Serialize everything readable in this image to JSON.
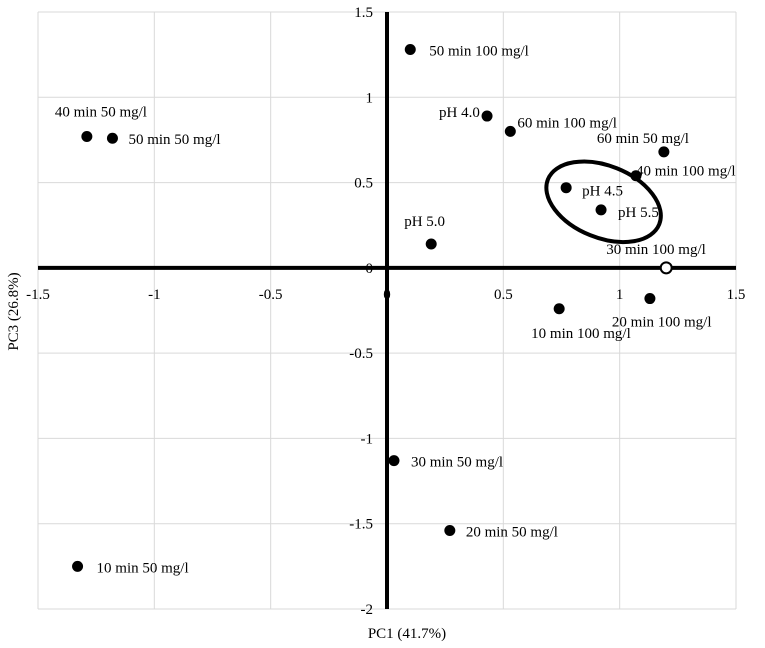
{
  "chart_data": {
    "type": "scatter",
    "xlabel": "PC1 (41.7%)",
    "ylabel": "PC3 (26.8%)",
    "xlim": [
      -1.5,
      1.5
    ],
    "ylim": [
      -2,
      1.5
    ],
    "xticks": [
      -1.5,
      -1,
      -0.5,
      0,
      0.5,
      1,
      1.5
    ],
    "yticks": [
      -2,
      -1.5,
      -1,
      -0.5,
      0,
      0.5,
      1,
      1.5
    ],
    "xtick_labels": [
      "-1.5",
      "-1",
      "-0.5",
      "0",
      "0.5",
      "1",
      "1.5"
    ],
    "ytick_labels": [
      "-2",
      "-1.5",
      "-1",
      "-0.5",
      "0",
      "0.5",
      "1",
      "1.5"
    ],
    "grid": true,
    "highlight": {
      "shape": "ellipse",
      "encloses": [
        "pH 4.5",
        "pH 5.5"
      ]
    },
    "points": [
      {
        "label": "50 min 100 mg/l",
        "x": 0.1,
        "y": 1.28
      },
      {
        "label": "40 min 50 mg/l",
        "x": -1.29,
        "y": 0.77
      },
      {
        "label": "50 min 50 mg/l",
        "x": -1.18,
        "y": 0.76
      },
      {
        "label": "pH 4.0",
        "x": 0.43,
        "y": 0.89
      },
      {
        "label": "60 min 100 mg/l",
        "x": 0.53,
        "y": 0.8
      },
      {
        "label": "60 min 50 mg/l",
        "x": 1.19,
        "y": 0.68
      },
      {
        "label": "40 min 100 mg/l",
        "x": 1.07,
        "y": 0.54
      },
      {
        "label": "pH 4.5",
        "x": 0.77,
        "y": 0.47
      },
      {
        "label": "pH 5.5",
        "x": 0.92,
        "y": 0.34
      },
      {
        "label": "pH 5.0",
        "x": 0.19,
        "y": 0.14
      },
      {
        "label": "30 min 100 mg/l",
        "x": 1.2,
        "y": 0.0
      },
      {
        "label": "20 min 100 mg/l",
        "x": 1.13,
        "y": -0.18
      },
      {
        "label": "10 min 100 mg/l",
        "x": 0.74,
        "y": -0.24
      },
      {
        "label": "30 min 50 mg/l",
        "x": 0.03,
        "y": -1.13
      },
      {
        "label": "20 min 50 mg/l",
        "x": 0.27,
        "y": -1.54
      },
      {
        "label": "10 min 50 mg/l",
        "x": -1.33,
        "y": -1.75
      }
    ]
  }
}
